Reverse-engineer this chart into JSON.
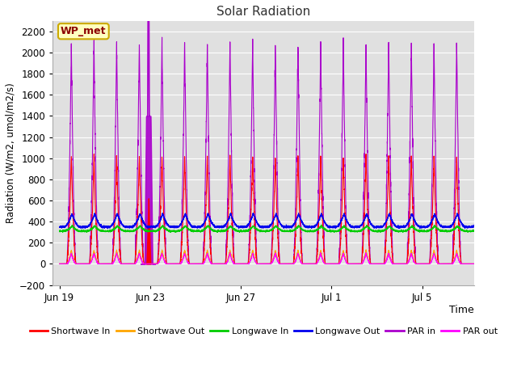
{
  "title": "Solar Radiation",
  "xlabel": "Time",
  "ylabel": "Radiation (W/m2, umol/m2/s)",
  "ylim": [
    -200,
    2300
  ],
  "yticks": [
    -200,
    0,
    200,
    400,
    600,
    800,
    1000,
    1200,
    1400,
    1600,
    1800,
    2000,
    2200
  ],
  "n_days": 19,
  "points_per_day": 288,
  "shortwave_in_peak": 1020,
  "shortwave_out_peak": 130,
  "longwave_in_base": 310,
  "longwave_in_peak": 380,
  "longwave_out_base": 350,
  "longwave_out_peak": 490,
  "par_in_peak": 2100,
  "par_out_peak": 100,
  "colors": {
    "shortwave_in": "#ff0000",
    "shortwave_out": "#ffa500",
    "longwave_in": "#00cc00",
    "longwave_out": "#0000ee",
    "par_in": "#aa00cc",
    "par_out": "#ff00ff"
  },
  "legend_labels": [
    "Shortwave In",
    "Shortwave Out",
    "Longwave In",
    "Longwave Out",
    "PAR in",
    "PAR out"
  ],
  "xtick_labels": [
    "Jun 19",
    "Jun 23",
    "Jun 27",
    "Jul 1",
    "Jul 5"
  ],
  "xtick_day_offsets": [
    0,
    4,
    8,
    12,
    16
  ],
  "annotation_text": "WP_met",
  "annotation_color": "#8B0000",
  "annotation_bg": "#FFFFC0",
  "annotation_border": "#ccaa00",
  "background_color": "#e0e0e0",
  "grid_color": "#ffffff",
  "line_width": 0.8,
  "fig_width": 6.4,
  "fig_height": 4.8,
  "dpi": 100
}
